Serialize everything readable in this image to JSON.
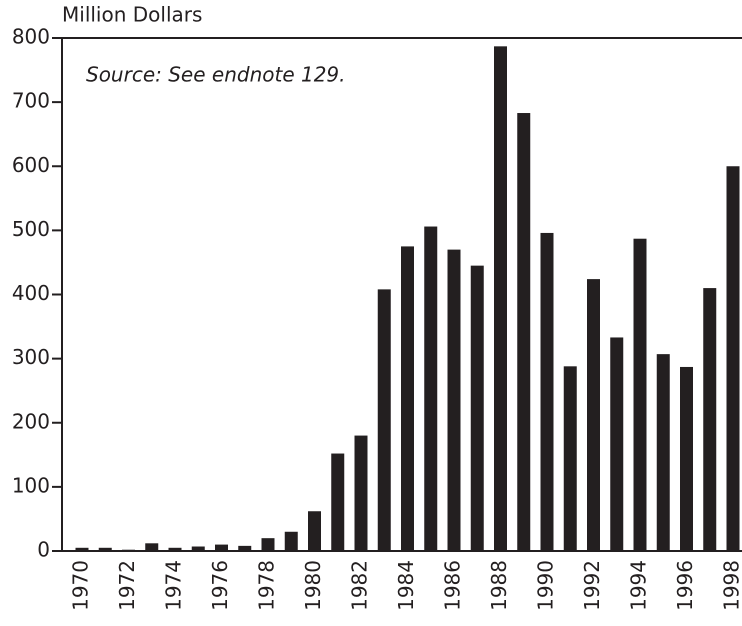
{
  "chart_data": {
    "type": "bar",
    "y_label": "Million Dollars",
    "annotation": "Source: See endnote 129.",
    "categories": [
      "1970",
      null,
      "1972",
      null,
      "1974",
      null,
      "1976",
      null,
      "1978",
      null,
      "1980",
      null,
      "1982",
      null,
      "1984",
      null,
      "1986",
      null,
      "1988",
      null,
      "1990",
      null,
      "1992",
      null,
      "1994",
      null,
      "1996",
      null,
      "1998"
    ],
    "values": [
      5,
      5,
      2,
      12,
      5,
      7,
      10,
      8,
      20,
      30,
      62,
      152,
      180,
      408,
      475,
      506,
      470,
      445,
      787,
      683,
      496,
      288,
      424,
      333,
      487,
      307,
      287,
      410,
      600
    ],
    "color": "#231f20",
    "ylim": [
      0,
      800
    ],
    "yticks": [
      0,
      100,
      200,
      300,
      400,
      500,
      600,
      700,
      800
    ],
    "grid": false
  }
}
